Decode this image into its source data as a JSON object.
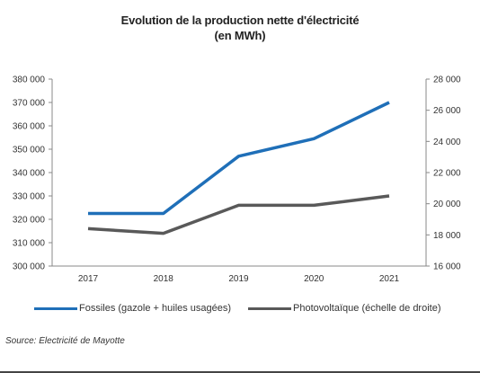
{
  "title_line1": "Evolution de la production nette d'électricité",
  "title_line2": "(en MWh)",
  "source": "Source: Électricité de Mayotte",
  "colors": {
    "fossiles": "#1f6fb8",
    "photovoltaique": "#595959",
    "axis": "#888888"
  },
  "chart_data": {
    "type": "line",
    "title": "Evolution de la production nette d'électricité (en MWh)",
    "x": [
      "2017",
      "2018",
      "2019",
      "2020",
      "2021"
    ],
    "y_left": {
      "ylim": [
        300000,
        380000
      ],
      "ticks": [
        300000,
        310000,
        320000,
        330000,
        340000,
        350000,
        360000,
        370000,
        380000
      ],
      "tick_labels": [
        "300 000",
        "310 000",
        "320 000",
        "330 000",
        "340 000",
        "350 000",
        "360 000",
        "370 000",
        "380 000"
      ]
    },
    "y_right": {
      "ylim": [
        16000,
        28000
      ],
      "ticks": [
        16000,
        18000,
        20000,
        22000,
        24000,
        26000,
        28000
      ],
      "tick_labels": [
        "16 000",
        "18 000",
        "20 000",
        "22 000",
        "24 000",
        "26 000",
        "28 000"
      ]
    },
    "series": [
      {
        "name": "Fossiles (gazole + huiles usagées)",
        "axis": "left",
        "values": [
          322500,
          322500,
          347000,
          354500,
          370000
        ]
      },
      {
        "name": "Photovoltaïque (échelle de droite)",
        "axis": "right",
        "values": [
          18400,
          18100,
          19900,
          19900,
          20500
        ]
      }
    ],
    "legend_position": "bottom",
    "grid": false
  }
}
